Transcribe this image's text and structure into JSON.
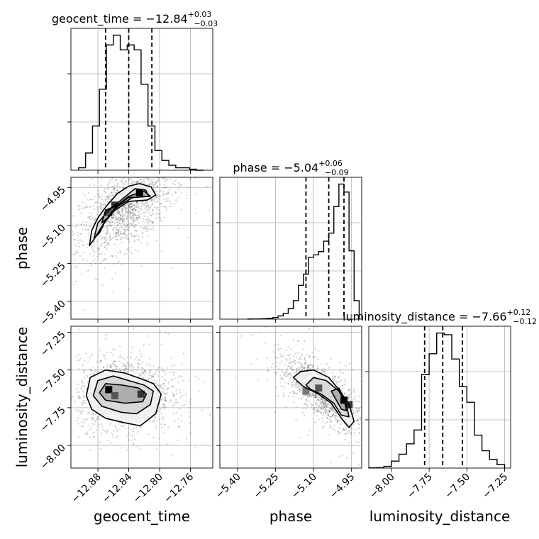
{
  "figure": {
    "type": "corner",
    "parameters": [
      "geocent_time",
      "phase",
      "luminosity_distance"
    ]
  },
  "chart_data": [
    {
      "type": "histogram",
      "panel": "geocent_time",
      "title": "geocent_time = −12.84",
      "title_sup": "+0.03",
      "title_sub": "−0.03",
      "xlim": [
        -12.915,
        -12.731
      ],
      "bin_edges": [
        -12.905,
        -12.896,
        -12.887,
        -12.878,
        -12.869,
        -12.86,
        -12.851,
        -12.842,
        -12.833,
        -12.824,
        -12.815,
        -12.806,
        -12.797,
        -12.788,
        -12.779,
        -12.77,
        -12.761,
        -12.752,
        -12.743
      ],
      "counts": [
        0.5,
        3.5,
        9,
        16.5,
        25.5,
        27.5,
        24.5,
        25.5,
        24.5,
        17.5,
        9,
        4,
        2,
        1,
        0.5,
        0.5,
        0.2,
        0
      ],
      "ymax": 27.5,
      "quantiles": [
        -12.87,
        -12.84,
        -12.81
      ],
      "xticks": [
        -12.88,
        -12.84,
        -12.8,
        -12.76
      ],
      "xticklabels": [
        "−12.88",
        "−12.84",
        "−12.80",
        "−12.76"
      ],
      "xlabel": "geocent_time"
    },
    {
      "type": "histogram",
      "panel": "phase",
      "title": "phase = −5.04",
      "title_sup": "+0.06",
      "title_sub": "−0.09",
      "xlim": [
        -5.47,
        -4.91
      ],
      "bin_edges": [
        -5.36,
        -5.34,
        -5.32,
        -5.3,
        -5.28,
        -5.26,
        -5.24,
        -5.22,
        -5.2,
        -5.18,
        -5.16,
        -5.14,
        -5.12,
        -5.1,
        -5.08,
        -5.06,
        -5.04,
        -5.02,
        -5.0,
        -4.98,
        -4.96,
        -4.94,
        -4.92
      ],
      "counts": [
        0.1,
        0.2,
        0.3,
        0.6,
        1,
        2,
        4,
        7,
        13,
        23,
        42,
        56,
        77,
        80,
        84,
        97,
        107,
        140,
        168,
        158,
        85,
        23
      ],
      "ymax": 168,
      "quantiles": [
        -5.13,
        -5.04,
        -4.98
      ],
      "xticks": [
        -5.4,
        -5.25,
        -5.1,
        -4.95
      ],
      "xticklabels": [
        "−5.40",
        "−5.25",
        "−5.10",
        "−4.95"
      ],
      "xlabel": "phase"
    },
    {
      "type": "histogram",
      "panel": "luminosity_distance",
      "title": "luminosity_distance = −7.66",
      "title_sup": "+0.12",
      "title_sub": "−0.12",
      "xlim": [
        -8.15,
        -7.21
      ],
      "bin_edges": [
        -8.15,
        -8.1,
        -8.05,
        -8.0,
        -7.95,
        -7.9,
        -7.85,
        -7.8,
        -7.75,
        -7.7,
        -7.65,
        -7.6,
        -7.55,
        -7.5,
        -7.45,
        -7.4,
        -7.35,
        -7.3,
        -7.25
      ],
      "counts": [
        0.1,
        0.2,
        1,
        4,
        8,
        14,
        22,
        54,
        66,
        78,
        77,
        63,
        47,
        38,
        19,
        10,
        5,
        2
      ],
      "ymax": 78,
      "quantiles": [
        -7.78,
        -7.66,
        -7.53
      ],
      "xticks": [
        -8.0,
        -7.75,
        -7.5,
        -7.25
      ],
      "xticklabels": [
        "−8.00",
        "−7.75",
        "−7.50",
        "−7.25"
      ],
      "xlabel": "luminosity_distance"
    },
    {
      "type": "2d-density",
      "panel": "phase vs geocent_time",
      "x": "geocent_time",
      "y": "phase",
      "xlim": [
        -12.915,
        -12.731
      ],
      "ylim": [
        -5.47,
        -4.91
      ],
      "center": [
        -12.843,
        -5.03
      ],
      "spread": [
        0.03,
        0.09
      ],
      "corr": 0.55,
      "peaks": [
        [
          -12.826,
          -4.97
        ],
        [
          -12.858,
          -5.02
        ],
        [
          -12.866,
          -5.05
        ]
      ],
      "contours": [
        [
          [
            -12.891,
            -5.18
          ],
          [
            -12.888,
            -5.12
          ],
          [
            -12.88,
            -5.07
          ],
          [
            -12.868,
            -5.02
          ],
          [
            -12.855,
            -4.975
          ],
          [
            -12.84,
            -4.945
          ],
          [
            -12.826,
            -4.935
          ],
          [
            -12.811,
            -4.948
          ],
          [
            -12.805,
            -4.98
          ],
          [
            -12.816,
            -5.0
          ],
          [
            -12.84,
            -5.005
          ],
          [
            -12.858,
            -5.04
          ],
          [
            -12.872,
            -5.09
          ],
          [
            -12.884,
            -5.15
          ]
        ],
        [
          [
            -12.885,
            -5.15
          ],
          [
            -12.88,
            -5.09
          ],
          [
            -12.866,
            -5.04
          ],
          [
            -12.85,
            -5.0
          ],
          [
            -12.832,
            -4.955
          ],
          [
            -12.818,
            -4.96
          ],
          [
            -12.814,
            -4.985
          ],
          [
            -12.835,
            -4.99
          ],
          [
            -12.857,
            -5.03
          ],
          [
            -12.87,
            -5.08
          ],
          [
            -12.878,
            -5.13
          ]
        ],
        [
          [
            -12.875,
            -5.09
          ],
          [
            -12.87,
            -5.04
          ],
          [
            -12.855,
            -5.02
          ],
          [
            -12.84,
            -4.985
          ],
          [
            -12.82,
            -4.965
          ],
          [
            -12.812,
            -4.985
          ],
          [
            -12.84,
            -4.99
          ],
          [
            -12.858,
            -5.03
          ],
          [
            -12.867,
            -5.07
          ]
        ]
      ],
      "yticks": [
        -4.95,
        -5.1,
        -5.25,
        -5.4
      ],
      "yticklabels": [
        "−4.95",
        "−5.10",
        "−5.25",
        "−5.40"
      ],
      "ylabel": "phase"
    },
    {
      "type": "2d-density",
      "panel": "luminosity_distance vs geocent_time",
      "x": "geocent_time",
      "y": "luminosity_distance",
      "xlim": [
        -12.915,
        -12.731
      ],
      "ylim": [
        -8.15,
        -7.21
      ],
      "center": [
        -12.845,
        -7.66
      ],
      "spread": [
        0.03,
        0.12
      ],
      "corr": 0.0,
      "peaks": [
        [
          -12.866,
          -7.63
        ],
        [
          -12.824,
          -7.66
        ],
        [
          -12.858,
          -7.67
        ]
      ],
      "contours": [
        [
          [
            -12.895,
            -7.67
          ],
          [
            -12.89,
            -7.55
          ],
          [
            -12.87,
            -7.5
          ],
          [
            -12.845,
            -7.52
          ],
          [
            -12.823,
            -7.56
          ],
          [
            -12.808,
            -7.59
          ],
          [
            -12.798,
            -7.66
          ],
          [
            -12.805,
            -7.79
          ],
          [
            -12.825,
            -7.87
          ],
          [
            -12.845,
            -7.85
          ],
          [
            -12.87,
            -7.82
          ],
          [
            -12.888,
            -7.76
          ]
        ],
        [
          [
            -12.886,
            -7.67
          ],
          [
            -12.88,
            -7.57
          ],
          [
            -12.86,
            -7.54
          ],
          [
            -12.84,
            -7.57
          ],
          [
            -12.82,
            -7.6
          ],
          [
            -12.808,
            -7.64
          ],
          [
            -12.812,
            -7.73
          ],
          [
            -12.83,
            -7.79
          ],
          [
            -12.85,
            -7.78
          ],
          [
            -12.875,
            -7.74
          ]
        ],
        [
          [
            -12.878,
            -7.65
          ],
          [
            -12.87,
            -7.59
          ],
          [
            -12.848,
            -7.6
          ],
          [
            -12.827,
            -7.62
          ],
          [
            -12.817,
            -7.66
          ],
          [
            -12.822,
            -7.71
          ],
          [
            -12.845,
            -7.72
          ],
          [
            -12.87,
            -7.7
          ]
        ]
      ],
      "yticks": [
        -7.25,
        -7.5,
        -7.75,
        -8.0
      ],
      "yticklabels": [
        "−7.25",
        "−7.50",
        "−7.75",
        "−8.00"
      ],
      "ylabel": "luminosity_distance"
    },
    {
      "type": "2d-density",
      "panel": "luminosity_distance vs phase",
      "x": "phase",
      "y": "luminosity_distance",
      "xlim": [
        -5.47,
        -4.91
      ],
      "ylim": [
        -8.15,
        -7.21
      ],
      "center": [
        -5.06,
        -7.66
      ],
      "spread": [
        0.08,
        0.12
      ],
      "corr": -0.75,
      "peaks": [
        [
          -4.98,
          -7.7
        ],
        [
          -4.96,
          -7.73
        ],
        [
          -5.08,
          -7.62
        ],
        [
          -5.13,
          -7.64
        ]
      ],
      "contours": [
        [
          [
            -5.18,
            -7.55
          ],
          [
            -5.15,
            -7.51
          ],
          [
            -5.1,
            -7.5
          ],
          [
            -5.04,
            -7.55
          ],
          [
            -5.0,
            -7.63
          ],
          [
            -4.96,
            -7.73
          ],
          [
            -4.94,
            -7.84
          ],
          [
            -4.96,
            -7.88
          ],
          [
            -4.99,
            -7.82
          ],
          [
            -5.03,
            -7.72
          ],
          [
            -5.08,
            -7.66
          ],
          [
            -5.14,
            -7.61
          ]
        ],
        [
          [
            -5.13,
            -7.6
          ],
          [
            -5.1,
            -7.55
          ],
          [
            -5.05,
            -7.57
          ],
          [
            -5.0,
            -7.64
          ],
          [
            -4.97,
            -7.73
          ],
          [
            -4.96,
            -7.81
          ],
          [
            -4.99,
            -7.8
          ],
          [
            -5.02,
            -7.72
          ],
          [
            -5.07,
            -7.66
          ],
          [
            -5.11,
            -7.63
          ]
        ],
        [
          [
            -5.03,
            -7.64
          ],
          [
            -5.0,
            -7.62
          ],
          [
            -4.98,
            -7.69
          ],
          [
            -4.97,
            -7.77
          ],
          [
            -4.99,
            -7.76
          ],
          [
            -5.01,
            -7.7
          ]
        ]
      ],
      "xticks": [
        -5.4,
        -5.25,
        -5.1,
        -4.95
      ],
      "xticklabels": [
        "−5.40",
        "−5.25",
        "−5.10",
        "−4.95"
      ]
    }
  ]
}
